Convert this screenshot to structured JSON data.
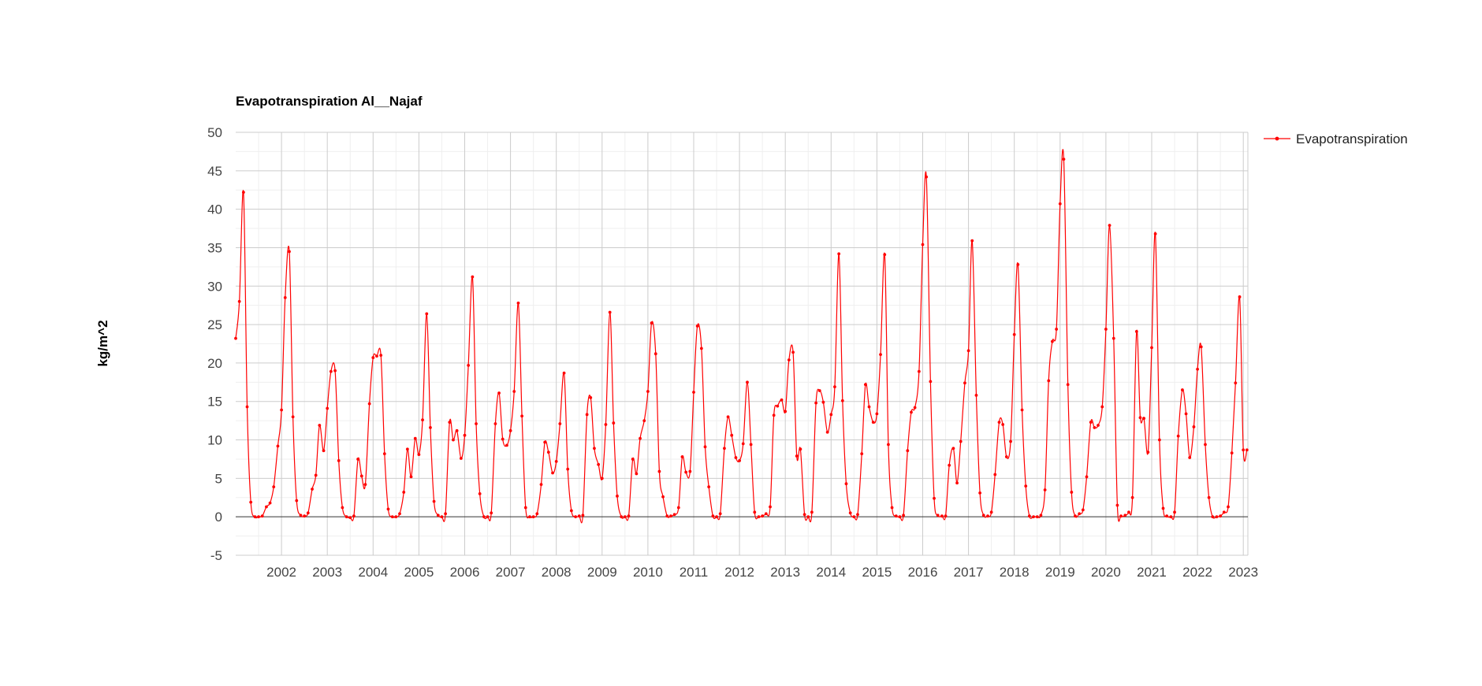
{
  "chart_data": {
    "type": "line",
    "title": "Evapotranspiration Al__Najaf",
    "ylabel": "kg/m^2",
    "xlabel": "",
    "ylim": [
      -5,
      50
    ],
    "yticks": [
      -5,
      0,
      5,
      10,
      15,
      20,
      25,
      30,
      35,
      40,
      45,
      50
    ],
    "xlim": [
      2001.0,
      2023.1
    ],
    "xticks": [
      2002,
      2003,
      2004,
      2005,
      2006,
      2007,
      2008,
      2009,
      2010,
      2011,
      2012,
      2013,
      2014,
      2015,
      2016,
      2017,
      2018,
      2019,
      2020,
      2021,
      2022,
      2023
    ],
    "grid": true,
    "legend_position": "right",
    "series": [
      {
        "name": "Evapotranspiration",
        "color": "#ff0000",
        "x": [
          2001.0,
          2001.08,
          2001.17,
          2001.25,
          2001.33,
          2001.42,
          2001.5,
          2001.58,
          2001.67,
          2001.75,
          2001.83,
          2001.92,
          2002.0,
          2002.08,
          2002.17,
          2002.25,
          2002.33,
          2002.42,
          2002.5,
          2002.58,
          2002.67,
          2002.75,
          2002.83,
          2002.92,
          2003.0,
          2003.08,
          2003.17,
          2003.25,
          2003.33,
          2003.42,
          2003.5,
          2003.58,
          2003.67,
          2003.75,
          2003.83,
          2003.92,
          2004.0,
          2004.08,
          2004.17,
          2004.25,
          2004.33,
          2004.42,
          2004.5,
          2004.58,
          2004.67,
          2004.75,
          2004.83,
          2004.92,
          2005.0,
          2005.08,
          2005.17,
          2005.25,
          2005.33,
          2005.42,
          2005.5,
          2005.58,
          2005.67,
          2005.75,
          2005.83,
          2005.92,
          2006.0,
          2006.08,
          2006.17,
          2006.25,
          2006.33,
          2006.42,
          2006.5,
          2006.58,
          2006.67,
          2006.75,
          2006.83,
          2006.92,
          2007.0,
          2007.08,
          2007.17,
          2007.25,
          2007.33,
          2007.42,
          2007.5,
          2007.58,
          2007.67,
          2007.75,
          2007.83,
          2007.92,
          2008.0,
          2008.08,
          2008.17,
          2008.25,
          2008.33,
          2008.42,
          2008.5,
          2008.58,
          2008.67,
          2008.75,
          2008.83,
          2008.92,
          2009.0,
          2009.08,
          2009.17,
          2009.25,
          2009.33,
          2009.42,
          2009.5,
          2009.58,
          2009.67,
          2009.75,
          2009.83,
          2009.92,
          2010.0,
          2010.08,
          2010.17,
          2010.25,
          2010.33,
          2010.42,
          2010.5,
          2010.58,
          2010.67,
          2010.75,
          2010.83,
          2010.92,
          2011.0,
          2011.08,
          2011.17,
          2011.25,
          2011.33,
          2011.42,
          2011.5,
          2011.58,
          2011.67,
          2011.75,
          2011.83,
          2011.92,
          2012.0,
          2012.08,
          2012.17,
          2012.25,
          2012.33,
          2012.42,
          2012.5,
          2012.58,
          2012.67,
          2012.75,
          2012.83,
          2012.92,
          2013.0,
          2013.08,
          2013.17,
          2013.25,
          2013.33,
          2013.42,
          2013.5,
          2013.58,
          2013.67,
          2013.75,
          2013.83,
          2013.92,
          2014.0,
          2014.08,
          2014.17,
          2014.25,
          2014.33,
          2014.42,
          2014.5,
          2014.58,
          2014.67,
          2014.75,
          2014.83,
          2014.92,
          2015.0,
          2015.08,
          2015.17,
          2015.25,
          2015.33,
          2015.42,
          2015.5,
          2015.58,
          2015.67,
          2015.75,
          2015.83,
          2015.92,
          2016.0,
          2016.08,
          2016.17,
          2016.25,
          2016.33,
          2016.42,
          2016.5,
          2016.58,
          2016.67,
          2016.75,
          2016.83,
          2016.92,
          2017.0,
          2017.08,
          2017.17,
          2017.25,
          2017.33,
          2017.42,
          2017.5,
          2017.58,
          2017.67,
          2017.75,
          2017.83,
          2017.92,
          2018.0,
          2018.08,
          2018.17,
          2018.25,
          2018.33,
          2018.42,
          2018.5,
          2018.58,
          2018.67,
          2018.75,
          2018.83,
          2018.92,
          2019.0,
          2019.08,
          2019.17,
          2019.25,
          2019.33,
          2019.42,
          2019.5,
          2019.58,
          2019.67,
          2019.75,
          2019.83,
          2019.92,
          2020.0,
          2020.08,
          2020.17,
          2020.25,
          2020.33,
          2020.42,
          2020.5,
          2020.58,
          2020.67,
          2020.75,
          2020.83,
          2020.92,
          2021.0,
          2021.08,
          2021.17,
          2021.25,
          2021.33,
          2021.42,
          2021.5,
          2021.58,
          2021.67,
          2021.75,
          2021.83,
          2021.92,
          2022.0,
          2022.08,
          2022.17,
          2022.25,
          2022.33,
          2022.42,
          2022.5,
          2022.58,
          2022.67,
          2022.75,
          2022.83,
          2022.92,
          2023.0,
          2023.08
        ],
        "y": [
          23.2,
          28.0,
          42.2,
          14.3,
          1.9,
          0.0,
          0.0,
          0.1,
          1.3,
          1.8,
          3.9,
          9.2,
          13.9,
          28.5,
          34.5,
          13.0,
          2.1,
          0.2,
          0.1,
          0.5,
          3.6,
          5.4,
          11.9,
          8.6,
          14.1,
          18.9,
          19.0,
          7.3,
          1.2,
          0.0,
          -0.1,
          0.1,
          7.5,
          5.3,
          4.2,
          14.7,
          20.7,
          20.9,
          21.0,
          8.2,
          1.0,
          0.0,
          0.0,
          0.4,
          3.2,
          8.8,
          5.2,
          10.2,
          8.1,
          12.6,
          26.4,
          11.6,
          2.0,
          0.2,
          0.0,
          0.4,
          12.3,
          10.0,
          11.2,
          7.6,
          10.6,
          19.7,
          31.2,
          12.1,
          3.0,
          0.0,
          0.0,
          0.5,
          12.1,
          16.1,
          10.1,
          9.3,
          11.2,
          16.3,
          27.8,
          13.1,
          1.2,
          0.0,
          0.0,
          0.4,
          4.2,
          9.7,
          8.4,
          5.7,
          7.2,
          12.1,
          18.7,
          6.2,
          0.8,
          0.0,
          0.1,
          0.2,
          13.3,
          15.5,
          8.9,
          6.8,
          5.0,
          12.0,
          26.6,
          12.2,
          2.7,
          0.0,
          0.0,
          0.1,
          7.5,
          5.6,
          10.2,
          12.5,
          16.3,
          25.2,
          21.2,
          5.9,
          2.6,
          0.1,
          0.1,
          0.3,
          1.2,
          7.8,
          5.8,
          5.9,
          16.2,
          24.8,
          21.9,
          9.1,
          3.9,
          0.1,
          0.0,
          0.4,
          8.9,
          13.0,
          10.6,
          7.7,
          7.3,
          9.5,
          17.5,
          9.4,
          0.6,
          0.0,
          0.1,
          0.4,
          1.3,
          13.2,
          14.4,
          15.2,
          13.7,
          20.4,
          21.4,
          7.9,
          8.8,
          0.3,
          0.0,
          0.6,
          14.8,
          16.4,
          14.9,
          11.0,
          13.3,
          16.9,
          34.2,
          15.1,
          4.3,
          0.5,
          0.0,
          0.3,
          8.2,
          17.2,
          14.3,
          12.3,
          13.4,
          21.1,
          34.1,
          9.4,
          1.2,
          0.1,
          0.0,
          0.2,
          8.6,
          13.6,
          14.2,
          18.9,
          35.4,
          44.2,
          17.6,
          2.4,
          0.2,
          0.1,
          0.1,
          6.7,
          8.9,
          4.4,
          9.8,
          17.4,
          21.6,
          35.9,
          15.8,
          3.1,
          0.2,
          0.1,
          0.6,
          5.5,
          12.3,
          12.0,
          7.8,
          9.8,
          23.7,
          32.8,
          13.9,
          4.0,
          0.1,
          0.0,
          0.0,
          0.2,
          3.5,
          17.7,
          22.8,
          24.4,
          40.7,
          46.5,
          17.2,
          3.2,
          0.1,
          0.4,
          0.9,
          5.2,
          12.3,
          11.6,
          11.9,
          14.3,
          24.4,
          37.9,
          23.2,
          1.5,
          0.1,
          0.2,
          0.6,
          2.5,
          24.1,
          12.9,
          12.8,
          8.4,
          22.0,
          36.8,
          10.0,
          1.1,
          0.1,
          0.0,
          0.6,
          10.5,
          16.5,
          13.4,
          7.7,
          11.7,
          19.2,
          22.1,
          9.4,
          2.5,
          0.0,
          0.0,
          0.1,
          0.6,
          1.3,
          8.3,
          17.4,
          28.6,
          8.7,
          8.7
        ]
      }
    ]
  }
}
